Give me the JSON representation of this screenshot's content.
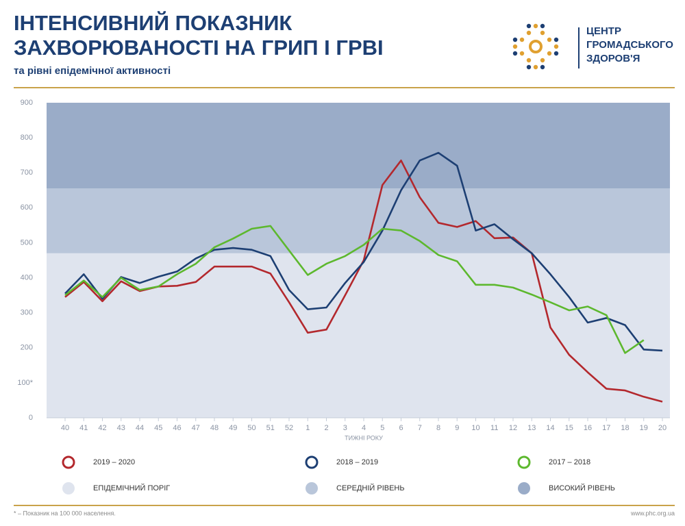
{
  "chart_data": {
    "type": "line",
    "title": [
      "ІНТЕНСИВНИЙ ПОКАЗНИК",
      "ЗАХВОРЮВАНОСТІ НА ГРИП І ГРВІ"
    ],
    "subtitle": "та рівні епідемічної активності",
    "x_label": "ТИЖНІ РОКУ",
    "categories": [
      "40",
      "41",
      "42",
      "43",
      "44",
      "45",
      "46",
      "47",
      "48",
      "49",
      "50",
      "51",
      "52",
      "1",
      "2",
      "3",
      "4",
      "5",
      "6",
      "7",
      "8",
      "9",
      "10",
      "11",
      "12",
      "13",
      "14",
      "15",
      "16",
      "17",
      "18",
      "19",
      "20"
    ],
    "series": [
      {
        "name": "2019 – 2020",
        "color": "#b3282d",
        "values": [
          345,
          388,
          333,
          390,
          362,
          375,
          377,
          388,
          432,
          432,
          432,
          412,
          330,
          243,
          252,
          350,
          450,
          665,
          735,
          630,
          557,
          545,
          562,
          513,
          515,
          470,
          258,
          180,
          130,
          83,
          78,
          60,
          46
        ]
      },
      {
        "name": "2018 – 2019",
        "color": "#1d3f73",
        "values": [
          355,
          410,
          340,
          402,
          385,
          403,
          418,
          455,
          480,
          485,
          480,
          462,
          365,
          310,
          315,
          385,
          445,
          535,
          650,
          735,
          757,
          720,
          535,
          553,
          510,
          470,
          410,
          345,
          272,
          285,
          265,
          195,
          192
        ]
      },
      {
        "name": "2017 – 2018",
        "color": "#5db82e",
        "values": [
          350,
          392,
          345,
          400,
          365,
          375,
          410,
          440,
          487,
          512,
          540,
          548,
          478,
          408,
          440,
          462,
          494,
          540,
          535,
          505,
          465,
          447,
          380,
          380,
          372,
          352,
          330,
          307,
          318,
          293,
          185,
          222,
          null
        ]
      }
    ],
    "bands": [
      {
        "name": "ЕПІДЕМІЧНИЙ ПОРІГ",
        "from": 0,
        "to": 470,
        "color": "#dfe4ee"
      },
      {
        "name": "СЕРЕДНІЙ РІВЕНЬ",
        "from": 470,
        "to": 655,
        "color": "#b9c6da"
      },
      {
        "name": "ВИСОКИЙ РІВЕНЬ",
        "from": 655,
        "to": 900,
        "color": "#9aacc8"
      }
    ],
    "ylim": [
      0,
      900
    ],
    "yticks": [
      0,
      {
        "value": 100,
        "label": "100*"
      },
      200,
      300,
      400,
      500,
      600,
      700,
      800,
      900
    ],
    "grid": false
  },
  "logo": {
    "lines": [
      "ЦЕНТР",
      "ГРОМАДСЬКОГО",
      "ЗДОРОВ'Я"
    ]
  },
  "footer": {
    "note": "* – Показник на 100 000 населення.",
    "source": "www.phc.org.ua"
  }
}
